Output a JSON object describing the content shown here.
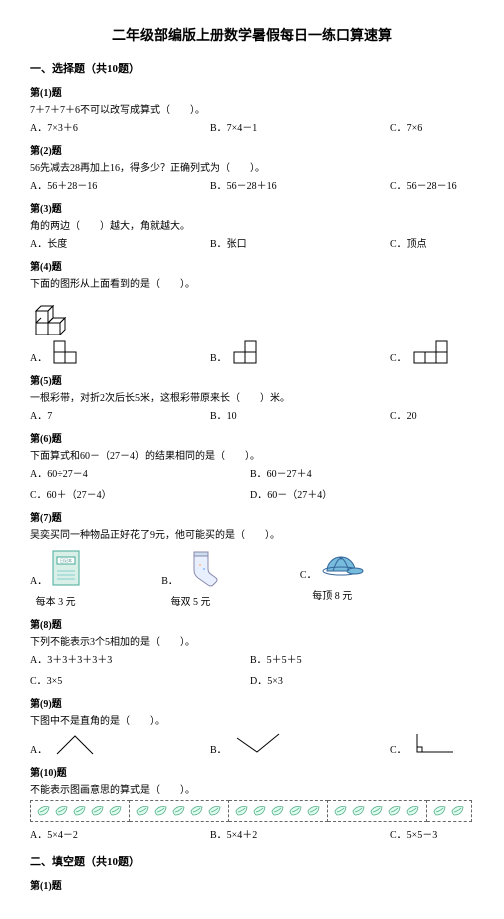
{
  "title": "二年级部编版上册数学暑假每日一练口算速算",
  "section1": "一、选择题（共10题）",
  "section2": "二、填空题（共10题）",
  "q1": {
    "header": "第(1)题",
    "text": "7＋7＋7＋6不可以改写成算式（　　）。",
    "a": "A．7×3＋6",
    "b": "B．7×4－1",
    "c": "C．7×6"
  },
  "q2": {
    "header": "第(2)题",
    "text": "56先减去28再加上16，得多少？正确列式为（　　）。",
    "a": "A．56＋28－16",
    "b": "B．56－28＋16",
    "c": "C．56－28－16"
  },
  "q3": {
    "header": "第(3)题",
    "text": "角的两边（　　）越大，角就越大。",
    "a": "A．长度",
    "b": "B．张口",
    "c": "C．顶点"
  },
  "q4": {
    "header": "第(4)题",
    "text": "下面的图形从上面看到的是（　　）。",
    "a": "A．",
    "b": "B．",
    "c": "C．"
  },
  "q5": {
    "header": "第(5)题",
    "text": "一根彩带，对折2次后长5米，这根彩带原来长（　　）米。",
    "a": "A．7",
    "b": "B．10",
    "c": "C．20"
  },
  "q6": {
    "header": "第(6)题",
    "text": "下面算式和60－（27－4）的结果相同的是（　　）。",
    "a": "A．60÷27－4",
    "b": "B．60－27＋4",
    "c": "C．60＋（27－4）",
    "d": "D．60－（27＋4）"
  },
  "q7": {
    "header": "第(7)题",
    "text": "吴奕买同一种物品正好花了9元，他可能买的是（　　）。",
    "a": "A．",
    "b": "B．",
    "c": "C．",
    "capA": "每本 3 元",
    "capB": "每双 5 元",
    "capC": "每顶 8 元",
    "label": "日记本"
  },
  "q8": {
    "header": "第(8)题",
    "text": "下列不能表示3个5相加的是（　　）。",
    "a": "A．3＋3＋3＋3＋3",
    "b": "B．5＋5＋5",
    "c": "C．3×5",
    "d": "D．5×3"
  },
  "q9": {
    "header": "第(9)题",
    "text": "下图中不是直角的是（　　）。",
    "a": "A．",
    "b": "B．",
    "c": "C．"
  },
  "q10": {
    "header": "第(10)题",
    "text": "不能表示图画意思的算式是（　　）。",
    "a": "A．5×4－2",
    "b": "B．5×4＋2",
    "c": "C．5×5－3"
  },
  "q2_1": {
    "header": "第(1)题"
  }
}
